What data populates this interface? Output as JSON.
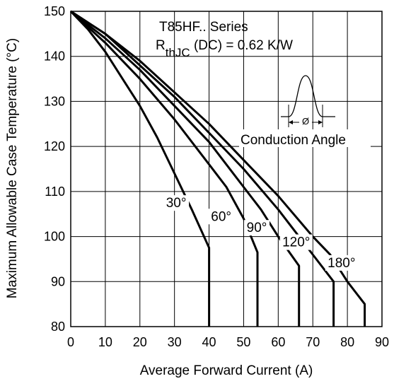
{
  "chart_data": {
    "type": "line",
    "title": "",
    "xlabel": "Average Forward Current (A)",
    "ylabel": "Maximum Allowable Case Temperature (°C)",
    "xlim": [
      0,
      90
    ],
    "ylim": [
      80,
      150
    ],
    "x_ticks": [
      "0",
      "10",
      "20",
      "30",
      "40",
      "50",
      "60",
      "70",
      "80",
      "90"
    ],
    "y_ticks": [
      "80",
      "90",
      "100",
      "110",
      "120",
      "130",
      "140",
      "150"
    ],
    "grid": true,
    "annotation": {
      "series_text": "T85HF.. Series",
      "rth_main": "R",
      "rth_sub": "thJC",
      "rth_rest": " (DC) = 0.62 K/W",
      "phi_symbol": "Ø",
      "conduction_label": "Conduction Angle"
    },
    "series": [
      {
        "name": "30°",
        "x": [
          0,
          5,
          10,
          15,
          20,
          25,
          30,
          35,
          40,
          40
        ],
        "y": [
          150,
          146,
          141,
          135,
          129,
          122,
          114,
          106,
          97.5,
          80
        ]
      },
      {
        "name": "60°",
        "x": [
          0,
          10,
          20,
          30,
          40,
          45,
          50,
          54,
          54
        ],
        "y": [
          150,
          143,
          135,
          126,
          116,
          111,
          104,
          96.5,
          80
        ]
      },
      {
        "name": "90°",
        "x": [
          0,
          10,
          20,
          30,
          40,
          50,
          55,
          60,
          66,
          66
        ],
        "y": [
          150,
          144,
          137,
          129,
          121,
          111,
          106,
          100,
          93.5,
          80
        ]
      },
      {
        "name": "120°",
        "x": [
          0,
          10,
          20,
          30,
          40,
          50,
          60,
          65,
          70,
          76,
          76
        ],
        "y": [
          150,
          145,
          138,
          131,
          123,
          115,
          106,
          101,
          96,
          90,
          80
        ]
      },
      {
        "name": "180°",
        "x": [
          0,
          10,
          20,
          30,
          40,
          50,
          60,
          70,
          75,
          80,
          85,
          85
        ],
        "y": [
          150,
          145,
          139,
          132,
          125,
          117,
          109,
          100,
          96,
          90,
          85,
          80
        ]
      }
    ],
    "series_label_anchors": [
      {
        "x": 30.5,
        "y": 106.5
      },
      {
        "x": 43.5,
        "y": 103.5
      },
      {
        "x": 53.8,
        "y": 101
      },
      {
        "x": 65.2,
        "y": 97.8
      },
      {
        "x": 78.3,
        "y": 93.2
      }
    ]
  }
}
